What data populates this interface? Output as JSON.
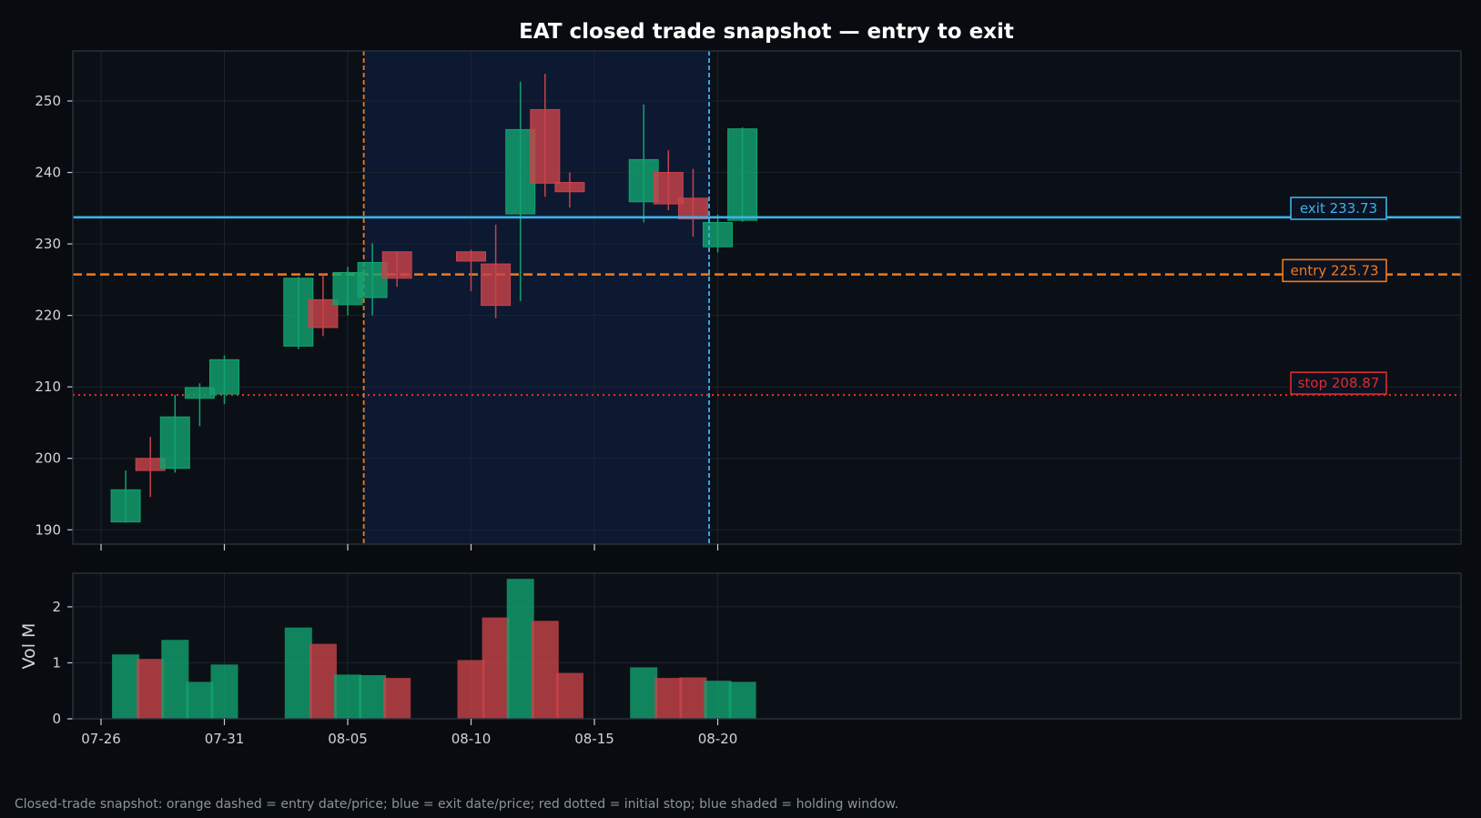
{
  "caption": "Closed-trade snapshot: orange dashed = entry date/price; blue = exit date/price; red dotted = initial stop; blue shaded = holding window.",
  "colors": {
    "background": "#080c11",
    "panel": "#0b1016",
    "holding_window": "#0e1a33",
    "up": "#12a26f",
    "down": "#c8434a",
    "entry": "#f07a1e",
    "exit": "#3ab4ea",
    "stop": "#de2c2c",
    "grid": "#1b2330",
    "axis": "#2c3542"
  },
  "chart_data": {
    "type": "candlestick",
    "title": "EAT closed trade snapshot — entry to exit",
    "ylabel": "",
    "volume_ylabel": "Vol M",
    "ylim": [
      188,
      257
    ],
    "volume_ylim": [
      0,
      2.6
    ],
    "y_ticks": [
      190,
      200,
      210,
      220,
      230,
      240,
      250
    ],
    "volume_ticks": [
      0,
      1,
      2
    ],
    "x_ticks": [
      "07-26",
      "07-31",
      "08-05",
      "08-10",
      "08-15",
      "08-20"
    ],
    "x_range": [
      "07-25",
      "08-22"
    ],
    "grid": true,
    "candles": [
      {
        "date": "07-27",
        "open": 191.1,
        "high": 198.3,
        "low": 191.0,
        "close": 195.6,
        "volume": 1.15
      },
      {
        "date": "07-28",
        "open": 200.0,
        "high": 203.0,
        "low": 194.6,
        "close": 198.3,
        "volume": 1.07
      },
      {
        "date": "07-29",
        "open": 198.6,
        "high": 208.9,
        "low": 198.0,
        "close": 205.8,
        "volume": 1.41
      },
      {
        "date": "07-30",
        "open": 208.4,
        "high": 210.5,
        "low": 204.5,
        "close": 209.9,
        "volume": 0.66
      },
      {
        "date": "07-31",
        "open": 209.0,
        "high": 214.4,
        "low": 207.6,
        "close": 213.8,
        "volume": 0.97
      },
      {
        "date": "08-03",
        "open": 215.7,
        "high": 225.4,
        "low": 215.3,
        "close": 225.2,
        "volume": 1.63
      },
      {
        "date": "08-04",
        "open": 222.2,
        "high": 225.8,
        "low": 217.1,
        "close": 218.3,
        "volume": 1.34
      },
      {
        "date": "08-05",
        "open": 221.5,
        "high": 226.8,
        "low": 220.0,
        "close": 226.0,
        "volume": 0.79
      },
      {
        "date": "08-06",
        "open": 222.5,
        "high": 230.1,
        "low": 220.0,
        "close": 227.4,
        "volume": 0.78
      },
      {
        "date": "08-07",
        "open": 228.9,
        "high": 229.0,
        "low": 224.0,
        "close": 225.2,
        "volume": 0.73
      },
      {
        "date": "08-10",
        "open": 228.9,
        "high": 229.2,
        "low": 223.4,
        "close": 227.6,
        "volume": 1.05
      },
      {
        "date": "08-11",
        "open": 227.2,
        "high": 232.7,
        "low": 219.6,
        "close": 221.4,
        "volume": 1.81
      },
      {
        "date": "08-12",
        "open": 234.2,
        "high": 252.7,
        "low": 222.0,
        "close": 246.0,
        "volume": 2.5
      },
      {
        "date": "08-13",
        "open": 248.8,
        "high": 253.8,
        "low": 236.6,
        "close": 238.5,
        "volume": 1.75
      },
      {
        "date": "08-14",
        "open": 238.6,
        "high": 240.0,
        "low": 235.1,
        "close": 237.3,
        "volume": 0.82
      },
      {
        "date": "08-17",
        "open": 235.9,
        "high": 249.5,
        "low": 233.0,
        "close": 241.8,
        "volume": 0.92
      },
      {
        "date": "08-18",
        "open": 240.0,
        "high": 243.1,
        "low": 234.7,
        "close": 235.6,
        "volume": 0.73
      },
      {
        "date": "08-19",
        "open": 236.4,
        "high": 240.5,
        "low": 231.0,
        "close": 233.5,
        "volume": 0.74
      },
      {
        "date": "08-20",
        "open": 229.6,
        "high": 234.1,
        "low": 228.8,
        "close": 233.0,
        "volume": 0.68
      },
      {
        "date": "08-21",
        "open": 233.3,
        "high": 246.3,
        "low": 233.1,
        "close": 246.1,
        "volume": 0.66
      }
    ],
    "entry": {
      "date": "08-05",
      "date_offset_days": 0.65,
      "price": 225.73,
      "label": "entry 225.73"
    },
    "exit": {
      "date": "08-19",
      "date_offset_days": 0.65,
      "price": 233.73,
      "label": "exit 233.73"
    },
    "stop": {
      "price": 208.87,
      "label": "stop 208.87"
    },
    "holding_window": {
      "start": "08-05",
      "start_offset_days": 0.65,
      "end": "08-19",
      "end_offset_days": 0.65
    }
  }
}
